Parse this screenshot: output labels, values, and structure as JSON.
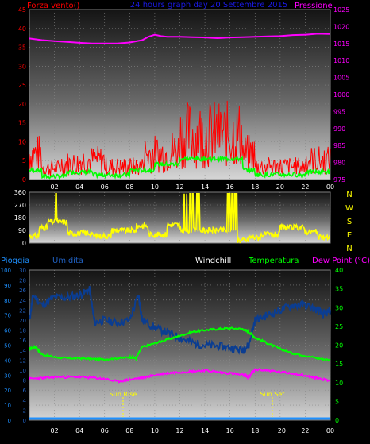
{
  "header": {
    "left": "Forza vento()",
    "center": "24 hours graph day  20 Settembre 2015",
    "right": "Pressione"
  },
  "colors": {
    "wind": "#ff0000",
    "gust": "#00ff00",
    "pressure": "#ff00ff",
    "direction": "#ffff00",
    "humidity": "#0b3d91",
    "temperature": "#00ff00",
    "dewpoint": "#ff00ff",
    "rain": "#1e90ff",
    "axis_left_red": "#ff0000",
    "axis_left_blue": "#1e90ff",
    "axis_left_humid": "#2060c0"
  },
  "legend2": {
    "pioggia": "Pioggia",
    "umidita": "Umidita",
    "windchill": "Windchill",
    "temperatura": "Temperatura",
    "dewpoint": "Dew Point (°C)"
  },
  "compass": [
    "N",
    "W",
    "S",
    "E",
    "N"
  ],
  "annotations": {
    "sunrise": "Sun Rise",
    "sunset": "Sun Set"
  },
  "chart_data": [
    {
      "type": "line",
      "panel": "wind-pressure",
      "title": "24 hours graph day  20 Settembre 2015",
      "ylabel_left": "Forza vento()",
      "ylabel_right": "Pressione",
      "ylim_left": [
        0,
        45
      ],
      "ylim_right": [
        975,
        1025
      ],
      "yticks_left": [
        "0",
        "5",
        "10",
        "15",
        "20",
        "25",
        "30",
        "35",
        "40",
        "45"
      ],
      "yticks_right": [
        "975",
        "980",
        "985",
        "990",
        "995",
        "1000",
        "1005",
        "1010",
        "1015",
        "1020",
        "1025"
      ],
      "xticks": [
        "02",
        "04",
        "06",
        "08",
        "10",
        "12",
        "14",
        "16",
        "18",
        "20",
        "22",
        "00"
      ],
      "series": [
        {
          "name": "Pressione",
          "axis": "right",
          "x": [
            0,
            1,
            2,
            3,
            4,
            5,
            6,
            7,
            8,
            9,
            9.5,
            10,
            10.5,
            11,
            12,
            13,
            14,
            15,
            16,
            17,
            18,
            19,
            20,
            21,
            22,
            23,
            24
          ],
          "values": [
            1016.5,
            1016,
            1015.7,
            1015.5,
            1015.2,
            1015,
            1015,
            1015,
            1015.3,
            1016,
            1017,
            1017.6,
            1017.2,
            1017,
            1017,
            1016.9,
            1016.8,
            1016.6,
            1016.8,
            1016.9,
            1017,
            1017.1,
            1017.2,
            1017.5,
            1017.6,
            1017.9,
            1017.8
          ]
        }
      ]
    },
    {
      "type": "line",
      "panel": "wind-direction",
      "ylim": [
        0,
        360
      ],
      "yticks": [
        "0",
        "90",
        "180",
        "270",
        "360"
      ],
      "xticks": [
        "02",
        "04",
        "06",
        "08",
        "10",
        "12",
        "14",
        "16",
        "18",
        "20",
        "22",
        "00"
      ]
    },
    {
      "type": "line",
      "panel": "temperature-humidity",
      "ylim_rain": [
        0,
        100
      ],
      "yticks_rain": [
        "0",
        "10",
        "20",
        "30",
        "40",
        "50",
        "60",
        "70",
        "80",
        "90",
        "100"
      ],
      "ylim_humid": [
        0,
        30
      ],
      "yticks_humid": [
        "0",
        "2",
        "4",
        "6",
        "8",
        "10",
        "12",
        "14",
        "16",
        "18",
        "20",
        "22",
        "24",
        "26",
        "28",
        "30"
      ],
      "ylim_temp": [
        0,
        40
      ],
      "yticks_temp": [
        "0",
        "5",
        "10",
        "15",
        "20",
        "25",
        "30",
        "35",
        "40"
      ],
      "xticks": [
        "02",
        "04",
        "06",
        "08",
        "10",
        "12",
        "14",
        "16",
        "18",
        "20",
        "22",
        "00"
      ],
      "series": [
        {
          "name": "Temperatura",
          "x": [
            0,
            0.5,
            1,
            2,
            3,
            4,
            5,
            6,
            7,
            8,
            8.5,
            9,
            10,
            11,
            12,
            13,
            14,
            15,
            16,
            17,
            17.5,
            18,
            19,
            20,
            21,
            22,
            23,
            24
          ],
          "values": [
            19,
            19.5,
            17.5,
            16.8,
            16.5,
            16.5,
            16.3,
            16.2,
            16.5,
            16.8,
            16.5,
            19.5,
            20.5,
            21.5,
            22.5,
            23.5,
            24,
            24.3,
            24.5,
            24.3,
            23.5,
            22,
            20.5,
            19,
            17.8,
            17.2,
            16.5,
            16
          ]
        },
        {
          "name": "Dew Point (°C)",
          "x": [
            0,
            1,
            2,
            3,
            4,
            5,
            6,
            7,
            8,
            9,
            10,
            11,
            12,
            13,
            14,
            15,
            16,
            17,
            17.5,
            18,
            19,
            20,
            21,
            22,
            23,
            24
          ],
          "values": [
            11,
            11.2,
            11.5,
            11.5,
            11.5,
            11.3,
            11,
            10.3,
            10.8,
            11.3,
            12,
            12.5,
            12.8,
            13,
            13.3,
            12.8,
            12.5,
            12,
            11.5,
            13.5,
            13.3,
            12.8,
            12.5,
            11.8,
            11.2,
            10.5
          ]
        },
        {
          "name": "Umidita",
          "x": [
            0,
            0.3,
            1,
            2,
            3,
            4,
            4.8,
            5.2,
            6,
            7,
            8,
            8.7,
            9,
            10,
            11,
            12,
            13,
            14,
            15,
            16,
            17,
            17.5,
            18,
            19,
            20,
            21,
            22,
            23,
            23.5,
            24
          ],
          "values": [
            20,
            25,
            23,
            24.5,
            24.5,
            25,
            26,
            19.5,
            20,
            19.5,
            20,
            25,
            20,
            18.5,
            17.5,
            16.5,
            15.5,
            15,
            14.8,
            14.5,
            14,
            15,
            20,
            21,
            22,
            23,
            23,
            22,
            21,
            22
          ]
        },
        {
          "name": "Pioggia",
          "x": [
            0,
            24
          ],
          "values": [
            0,
            0
          ]
        }
      ]
    }
  ]
}
